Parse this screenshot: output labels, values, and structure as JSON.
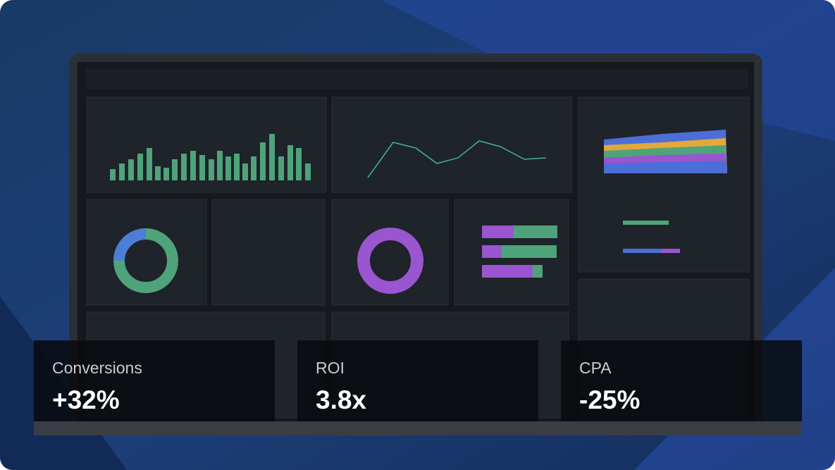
{
  "stats": [
    {
      "label": "Conversions",
      "value": "+32%"
    },
    {
      "label": "ROI",
      "value": "3.8x"
    },
    {
      "label": "CPA",
      "value": "-25%"
    }
  ]
}
